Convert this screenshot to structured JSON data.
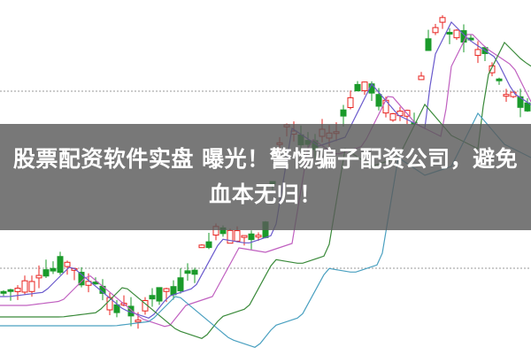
{
  "article": {
    "title": "股票配资软件实盘 曝光！警惕骗子配资公司，避免血本无归！"
  },
  "colors": {
    "up": "#e8231f",
    "down": "#1a9a2a",
    "ma_short": "#6a5acd",
    "ma_mid": "#c060c0",
    "ma_long": "#3a8a3a",
    "ma_longest": "#4aa0c0",
    "banner": "#5a5a5a"
  }
}
